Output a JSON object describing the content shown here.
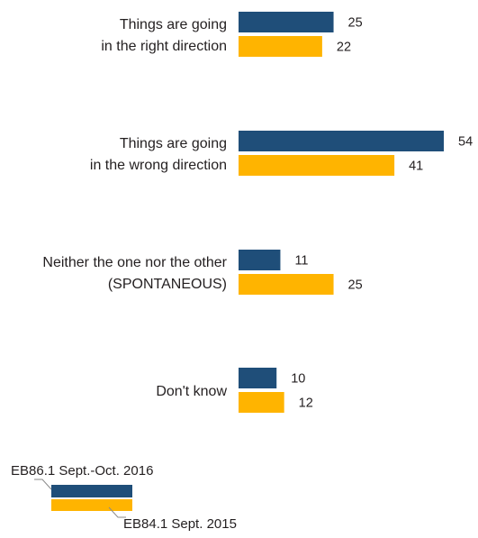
{
  "colors": {
    "series_2016": "#1f4e79",
    "series_2015": "#ffb400",
    "text": "#231f20"
  },
  "chart_data": {
    "type": "bar",
    "orientation": "horizontal",
    "categories": [
      [
        "Things are going",
        "in the right direction"
      ],
      [
        "Things are going",
        "in the wrong direction"
      ],
      [
        "Neither the one nor the other",
        "(SPONTANEOUS)"
      ],
      [
        "Don't know"
      ]
    ],
    "series": [
      {
        "name": "EB86.1 Sept.-Oct. 2016",
        "color": "#1f4e79",
        "values": [
          25,
          54,
          11,
          10
        ]
      },
      {
        "name": "EB84.1 Sept. 2015",
        "color": "#ffb400",
        "values": [
          22,
          41,
          25,
          12
        ]
      }
    ],
    "xlim": [
      0,
      54
    ],
    "grid": false,
    "legend_position": "bottom-left"
  }
}
